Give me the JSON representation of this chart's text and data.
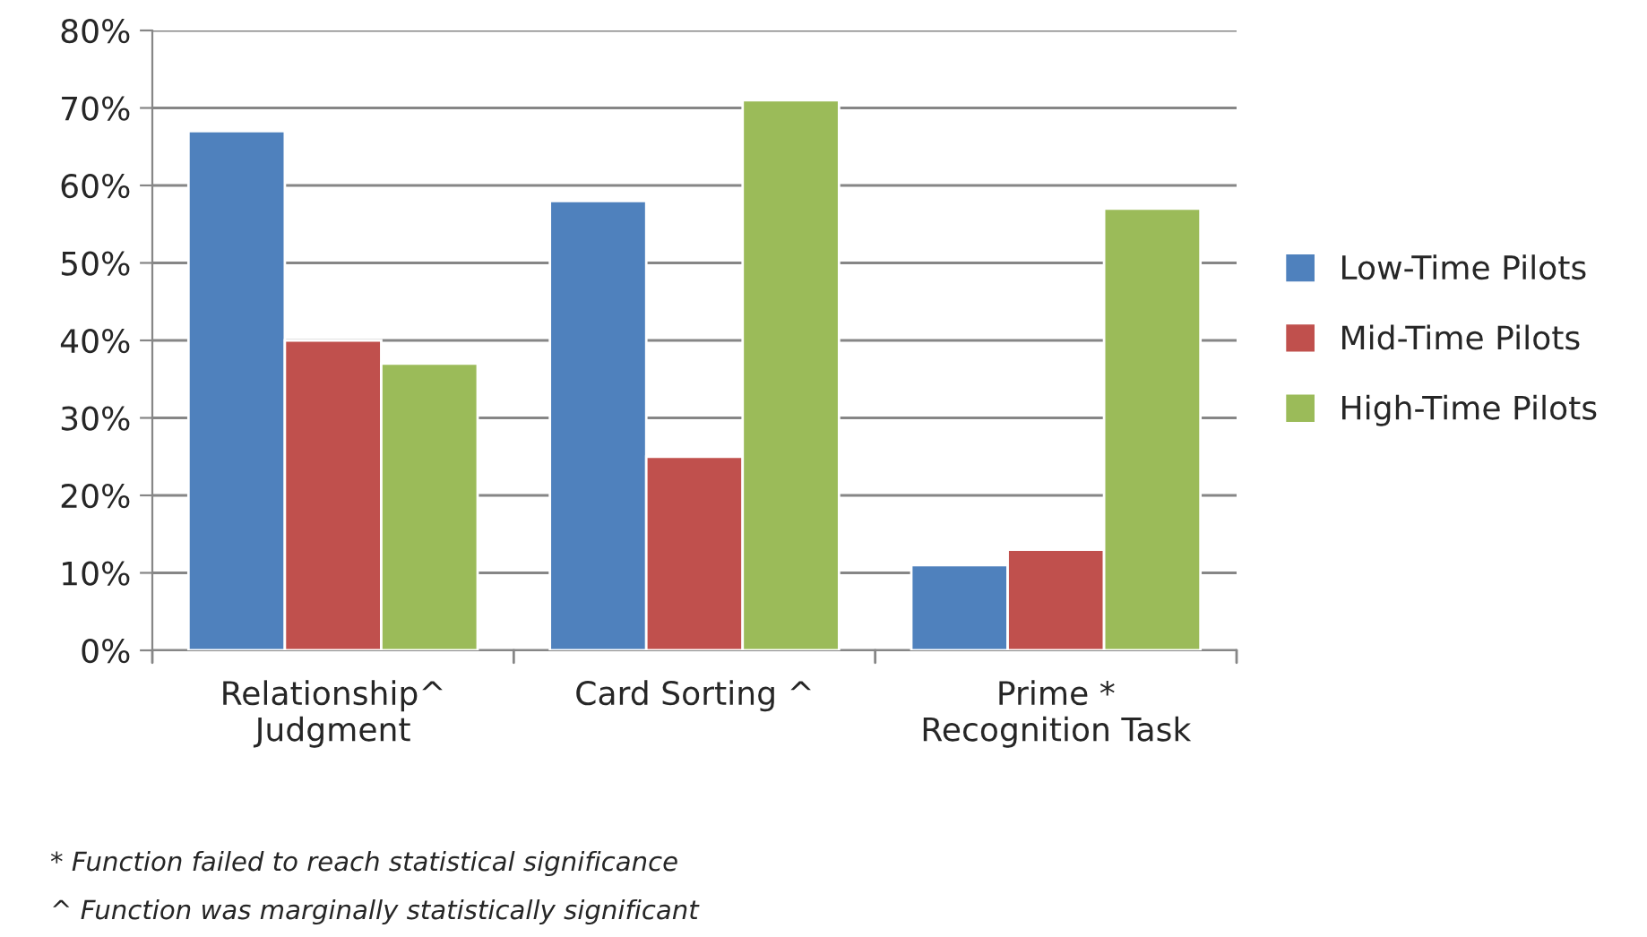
{
  "chart_data": {
    "type": "bar",
    "categories": [
      "Relationship^\nJudgment",
      "Card Sorting ^",
      "Prime *\nRecognition Task"
    ],
    "series": [
      {
        "name": "Low-Time Pilots",
        "color": "#4f81bd",
        "values": [
          67,
          58,
          11
        ]
      },
      {
        "name": "Mid-Time Pilots",
        "color": "#c0504d",
        "values": [
          40,
          25,
          13
        ]
      },
      {
        "name": "High-Time Pilots",
        "color": "#9bbb59",
        "values": [
          37,
          71,
          57
        ]
      }
    ],
    "ylim": [
      0,
      80
    ],
    "yticks": [
      {
        "value": 0,
        "label": "0%"
      },
      {
        "value": 10,
        "label": "10%"
      },
      {
        "value": 20,
        "label": "20%"
      },
      {
        "value": 30,
        "label": "30%"
      },
      {
        "value": 40,
        "label": "40%"
      },
      {
        "value": 50,
        "label": "50%"
      },
      {
        "value": 60,
        "label": "60%"
      },
      {
        "value": 70,
        "label": "70%"
      },
      {
        "value": 80,
        "label": "80%"
      }
    ],
    "grid": "y",
    "legend": "right",
    "annotations": [
      "* Function failed to reach statistical significance",
      "^ Function was marginally statistically significant"
    ]
  }
}
